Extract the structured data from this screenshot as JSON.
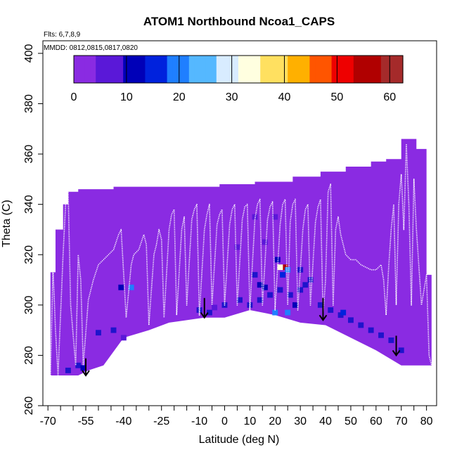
{
  "chart_data": {
    "type": "heatmap",
    "title": "ATOM1 Northbound Ncoa1_CAPS",
    "flights_note": "Flts: 6,7,8,9",
    "dates_note": "MMDD: 0812,0815,0817,0820",
    "xlabel": "Latitude (deg N)",
    "ylabel": "Theta (C)",
    "xlim": [
      -72,
      84
    ],
    "ylim": [
      260,
      405
    ],
    "x_ticks": [
      -70,
      -55,
      -40,
      -25,
      -10,
      0,
      10,
      20,
      30,
      40,
      50,
      60,
      70,
      80
    ],
    "y_ticks": [
      260,
      280,
      300,
      320,
      340,
      360,
      380,
      400
    ],
    "colorbar": {
      "min": 0,
      "max": 62.5,
      "ticks": [
        0,
        10,
        20,
        30,
        40,
        50,
        60
      ],
      "colors": [
        "#8a2be2",
        "#5a18d8",
        "#0000b8",
        "#0022dd",
        "#1f7fff",
        "#55b8ff",
        "#d8ecff",
        "#ffffe0",
        "#ffe060",
        "#ffb000",
        "#ff5500",
        "#ee0000",
        "#b00000",
        "#a52a2a"
      ]
    },
    "field_color": "#8a2be2",
    "field_top_theta": [
      [
        -69,
        313
      ],
      [
        -67,
        330
      ],
      [
        -64,
        340
      ],
      [
        -62,
        345
      ],
      [
        -58,
        346
      ],
      [
        -50,
        346
      ],
      [
        -44,
        347
      ],
      [
        -34,
        347
      ],
      [
        -20,
        347
      ],
      [
        -2,
        348
      ],
      [
        12,
        349
      ],
      [
        27,
        351
      ],
      [
        38,
        353
      ],
      [
        48,
        355
      ],
      [
        58,
        357
      ],
      [
        64,
        358
      ],
      [
        70,
        366
      ],
      [
        76,
        362
      ],
      [
        80,
        312
      ],
      [
        82,
        285
      ]
    ],
    "field_bottom_theta": [
      [
        -69,
        272
      ],
      [
        -58,
        272
      ],
      [
        -54,
        274
      ],
      [
        -48,
        276
      ],
      [
        -40,
        287
      ],
      [
        -30,
        290
      ],
      [
        -22,
        293
      ],
      [
        -8,
        295
      ],
      [
        0,
        295
      ],
      [
        10,
        298
      ],
      [
        20,
        296
      ],
      [
        30,
        293
      ],
      [
        40,
        292
      ],
      [
        50,
        287
      ],
      [
        60,
        282
      ],
      [
        70,
        276
      ],
      [
        82,
        276
      ]
    ],
    "enhanced_cells": [
      {
        "lat": 24,
        "theta": 315,
        "value": 55
      },
      {
        "lat": 22,
        "theta": 315,
        "value": 32
      },
      {
        "lat": 25,
        "theta": 314,
        "value": 22
      },
      {
        "lat": 23,
        "theta": 312,
        "value": 14
      },
      {
        "lat": 21,
        "theta": 318,
        "value": 10
      },
      {
        "lat": -37,
        "theta": 307,
        "value": 18
      },
      {
        "lat": -41,
        "theta": 307,
        "value": 10
      },
      {
        "lat": 16,
        "theta": 307,
        "value": 12
      },
      {
        "lat": 14,
        "theta": 308,
        "value": 10
      },
      {
        "lat": 20,
        "theta": 297,
        "value": 22
      },
      {
        "lat": 25,
        "theta": 297,
        "value": 18
      },
      {
        "lat": 28,
        "theta": 300,
        "value": 10
      },
      {
        "lat": 47,
        "theta": 297,
        "value": 14
      },
      {
        "lat": -56,
        "theta": 275,
        "value": 12
      },
      {
        "lat": -40,
        "theta": 287,
        "value": 8
      },
      {
        "lat": -4,
        "theta": 299,
        "value": 8
      },
      {
        "lat": 12,
        "theta": 335,
        "value": 8
      },
      {
        "lat": 20,
        "theta": 335,
        "value": 8
      },
      {
        "lat": 16,
        "theta": 325,
        "value": 6
      },
      {
        "lat": 5,
        "theta": 323,
        "value": 8
      }
    ],
    "blue_base_cells": [
      [
        -10,
        298
      ],
      [
        -6,
        297
      ],
      [
        0,
        300
      ],
      [
        6,
        302
      ],
      [
        10,
        300
      ],
      [
        14,
        302
      ],
      [
        18,
        304
      ],
      [
        22,
        306
      ],
      [
        26,
        304
      ],
      [
        30,
        306
      ],
      [
        34,
        310
      ],
      [
        38,
        300
      ],
      [
        42,
        298
      ],
      [
        46,
        296
      ],
      [
        50,
        294
      ],
      [
        54,
        292
      ],
      [
        58,
        290
      ],
      [
        62,
        288
      ],
      [
        66,
        286
      ],
      [
        70,
        282
      ],
      [
        30,
        314
      ],
      [
        32,
        308
      ],
      [
        12,
        312
      ],
      [
        -44,
        290
      ],
      [
        -50,
        289
      ],
      [
        -58,
        276
      ],
      [
        -62,
        274
      ]
    ],
    "flight_track": [
      [
        -69,
        272
      ],
      [
        -68,
        315
      ],
      [
        -67,
        290
      ],
      [
        -66,
        272
      ],
      [
        -64,
        320
      ],
      [
        -63,
        340
      ],
      [
        -62,
        346
      ],
      [
        -61,
        300
      ],
      [
        -59,
        276
      ],
      [
        -58,
        320
      ],
      [
        -57,
        310
      ],
      [
        -56,
        276
      ],
      [
        -54,
        302
      ],
      [
        -52,
        310
      ],
      [
        -50,
        316
      ],
      [
        -48,
        318
      ],
      [
        -46,
        320
      ],
      [
        -44,
        322
      ],
      [
        -42,
        328
      ],
      [
        -41,
        330
      ],
      [
        -39,
        295
      ],
      [
        -37,
        316
      ],
      [
        -36,
        320
      ],
      [
        -34,
        322
      ],
      [
        -33,
        325
      ],
      [
        -32,
        328
      ],
      [
        -31,
        324
      ],
      [
        -30,
        292
      ],
      [
        -28,
        320
      ],
      [
        -27,
        324
      ],
      [
        -26,
        330
      ],
      [
        -25,
        326
      ],
      [
        -24,
        295
      ],
      [
        -22,
        330
      ],
      [
        -21,
        336
      ],
      [
        -20,
        338
      ],
      [
        -19,
        296
      ],
      [
        -17,
        330
      ],
      [
        -16,
        335
      ],
      [
        -15,
        300
      ],
      [
        -13,
        334
      ],
      [
        -12,
        338
      ],
      [
        -11,
        340
      ],
      [
        -10,
        296
      ],
      [
        -8,
        330
      ],
      [
        -7,
        336
      ],
      [
        -6,
        340
      ],
      [
        -5,
        300
      ],
      [
        -3,
        332
      ],
      [
        -2,
        336
      ],
      [
        -1,
        338
      ],
      [
        0,
        300
      ],
      [
        2,
        332
      ],
      [
        3,
        338
      ],
      [
        4,
        340
      ],
      [
        5,
        300
      ],
      [
        7,
        334
      ],
      [
        8,
        339
      ],
      [
        9,
        340
      ],
      [
        10,
        298
      ],
      [
        12,
        334
      ],
      [
        13,
        340
      ],
      [
        14,
        342
      ],
      [
        15,
        300
      ],
      [
        17,
        334
      ],
      [
        18,
        339
      ],
      [
        19,
        341
      ],
      [
        20,
        298
      ],
      [
        22,
        332
      ],
      [
        23,
        340
      ],
      [
        24,
        342
      ],
      [
        25,
        300
      ],
      [
        26,
        333
      ],
      [
        27,
        340
      ],
      [
        28,
        342
      ],
      [
        29,
        298
      ],
      [
        31,
        330
      ],
      [
        32,
        338
      ],
      [
        33,
        340
      ],
      [
        34,
        300
      ],
      [
        36,
        333
      ],
      [
        37,
        339
      ],
      [
        38,
        342
      ],
      [
        39,
        296
      ],
      [
        40,
        310
      ],
      [
        41,
        345
      ],
      [
        42,
        348
      ],
      [
        43,
        300
      ],
      [
        44,
        330
      ],
      [
        45,
        335
      ],
      [
        46,
        328
      ],
      [
        48,
        320
      ],
      [
        50,
        318
      ],
      [
        52,
        318
      ],
      [
        54,
        316
      ],
      [
        56,
        315
      ],
      [
        58,
        314
      ],
      [
        60,
        314
      ],
      [
        62,
        316
      ],
      [
        63,
        310
      ],
      [
        64,
        296
      ],
      [
        65,
        315
      ],
      [
        66,
        330
      ],
      [
        67,
        340
      ],
      [
        68,
        300
      ],
      [
        69,
        340
      ],
      [
        70,
        352
      ],
      [
        71,
        330
      ],
      [
        72,
        364
      ],
      [
        73,
        340
      ],
      [
        74,
        300
      ],
      [
        75,
        350
      ],
      [
        76,
        330
      ],
      [
        78,
        300
      ],
      [
        80,
        312
      ],
      [
        81,
        280
      ],
      [
        82,
        276
      ]
    ],
    "arrows": [
      {
        "lat": -55,
        "theta_from": 276,
        "theta_to": 272
      },
      {
        "lat": -8,
        "theta_from": 300,
        "theta_to": 295
      },
      {
        "lat": 39,
        "theta_from": 300,
        "theta_to": 294
      },
      {
        "lat": 68,
        "theta_from": 285,
        "theta_to": 280
      }
    ],
    "grid": false,
    "legend": "colorbar top-left inside plot"
  }
}
